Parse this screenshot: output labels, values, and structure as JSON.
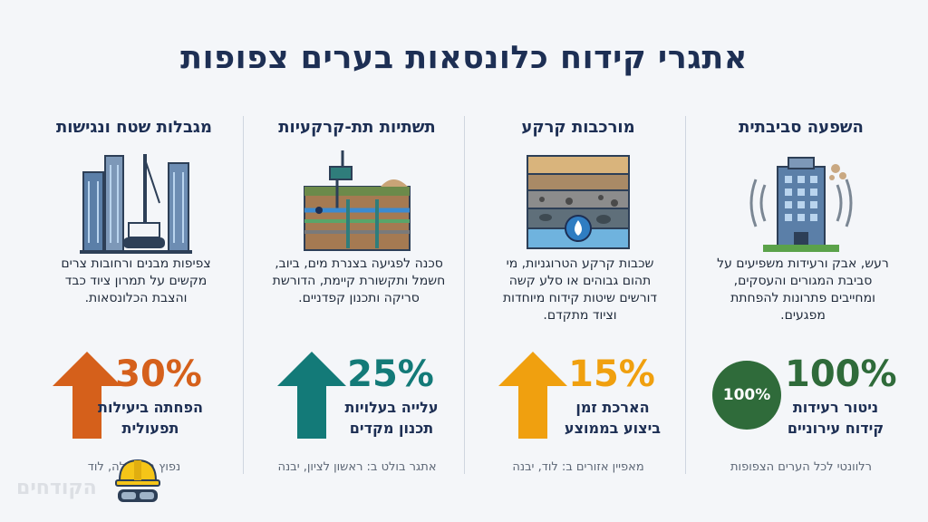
{
  "title": "אתגרי קידוח כלונסאות בערים צפופות",
  "colors": {
    "title": "#1d2f54",
    "orange": "#d5601b",
    "teal": "#137a78",
    "amber": "#f0a00f",
    "green": "#2f6b3a"
  },
  "columns": [
    {
      "heading": "השפעה סביבתית",
      "icon": "building-noise-icon",
      "description": "רעש, אבק ורעידות משפיעים על סביבת המגורים והעסקים, ומחייבים פתרונות להפחתת מפגעים.",
      "stat_value": "100%",
      "badge": "100%",
      "stat_label_1": "ניטור רעידות",
      "stat_label_2": "קידוח עירוניים",
      "footnote": "רלוונטי לכל הערים הצפופות",
      "color": "#2f6b3a"
    },
    {
      "heading": "מורכבות קרקע",
      "icon": "soil-layers-icon",
      "description": "שכבות קרקע הטרוגניות, מי תהום גבוהים או סלע קשה דורשים שיטות קידוח מיוחדות וציוד מתקדם.",
      "stat_value": "15%",
      "stat_label_1": "הארכת זמן",
      "stat_label_2": "ביצוע בממוצע",
      "footnote": "מאפיין אזורים ב: לוד, יבנה",
      "color": "#f0a00f"
    },
    {
      "heading": "תשתיות תת-קרקעיות",
      "icon": "underground-pipes-icon",
      "description": "סכנה לפגיעה בצנרת מים, ביוב, חשמל ותקשורת קיימת, הדורשת סריקה ותכנון קפדניים.",
      "stat_value": "25%",
      "stat_label_1": "עלייה בעלויות",
      "stat_label_2": "תכנון מקדים",
      "footnote": "אתגר בולט ב: ראשון לציון, יבנה",
      "color": "#137a78"
    },
    {
      "heading": "מגבלות שטח ונגישות",
      "icon": "city-drill-rig-icon",
      "description": "צפיפות מבנים ורחובות צרים מקשים על תמרון ציוד כבד והצבת הכלונסאות.",
      "stat_value": "30%",
      "stat_label_1": "הפחתה ביעילות",
      "stat_label_2": "תפעולית",
      "footnote": "נפוץ ב: רמלה, לוד",
      "color": "#d5601b"
    }
  ],
  "watermark": "הקודחים"
}
